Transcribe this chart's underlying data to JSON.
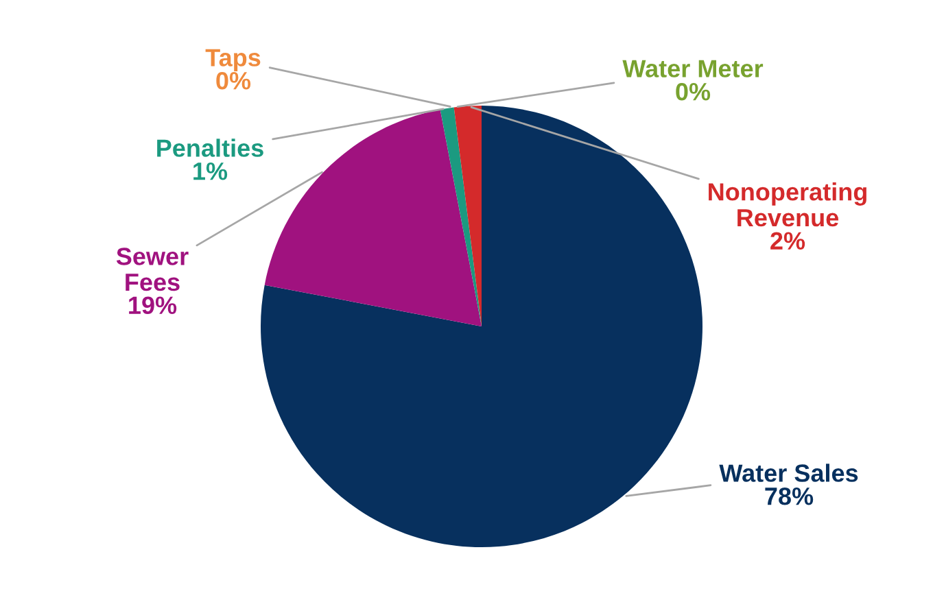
{
  "chart_data": {
    "type": "pie",
    "categories": [
      "Water Sales",
      "Sewer Fees",
      "Penalties",
      "Taps",
      "Water Meter",
      "Nonoperating Revenue"
    ],
    "values": [
      78,
      19,
      1,
      0,
      0,
      2
    ],
    "colors": [
      "#07305e",
      "#a0127f",
      "#1b9a80",
      "#ef8a3c",
      "#78a22f",
      "#d42a2b"
    ],
    "value_labels": [
      "78%",
      "19%",
      "1%",
      "0%",
      "0%",
      "2%"
    ]
  }
}
